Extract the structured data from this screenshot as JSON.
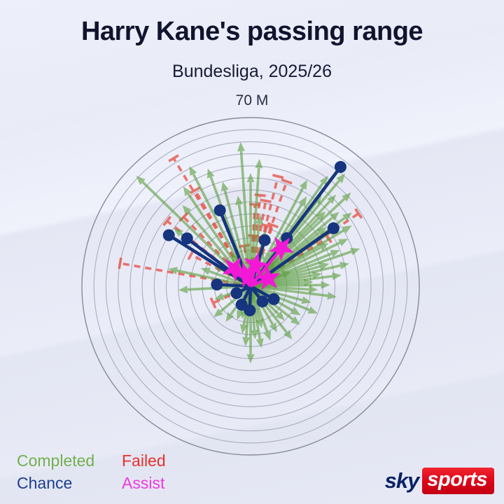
{
  "header": {
    "title": "Harry Kane's passing range",
    "subtitle": "Bundesliga, 2025/26"
  },
  "chart": {
    "max_label": "70 M"
  },
  "legend": {
    "completed": "Completed",
    "failed": "Failed",
    "chance": "Chance",
    "assist": "Assist"
  },
  "branding": {
    "sky": "sky",
    "sports": "sports"
  },
  "colors": {
    "title_text": "#10142e",
    "background": "#e8eaf6",
    "ring": "#a9adc0",
    "outer_ring": "#878b9b",
    "completed": "#5a9e3c",
    "failed": "#e8544a",
    "chance": "#16357e",
    "assist": "#f318d6"
  },
  "chart_data": {
    "type": "scatter",
    "subtype": "radial-pass-map",
    "title": "Harry Kane's passing range",
    "subtitle": "Bundesliga, 2025/26",
    "max_radius_m": 70,
    "ring_interval_m": 5,
    "ring_count": 14,
    "max_ring_label": "70 M",
    "angle_convention": "degrees, 0 = right/east, positive = counterclockwise (up); length in meters",
    "series": [
      {
        "name": "Completed",
        "style": "arrow",
        "color": "#5a9e3c",
        "opacity": 0.6,
        "passes": [
          [
            136,
            66
          ],
          [
            117,
            56
          ],
          [
            124,
            50
          ],
          [
            130,
            44
          ],
          [
            143,
            40
          ],
          [
            110,
            52
          ],
          [
            105,
            45
          ],
          [
            94,
            60
          ],
          [
            90,
            47
          ],
          [
            86,
            53
          ],
          [
            98,
            38
          ],
          [
            82,
            30
          ],
          [
            62,
            50
          ],
          [
            58,
            44
          ],
          [
            55,
            56
          ],
          [
            52,
            48
          ],
          [
            50,
            61
          ],
          [
            47,
            52
          ],
          [
            45,
            44
          ],
          [
            43,
            57
          ],
          [
            40,
            48
          ],
          [
            38,
            40
          ],
          [
            36,
            52
          ],
          [
            34,
            44
          ],
          [
            31,
            49
          ],
          [
            29,
            37
          ],
          [
            26,
            45
          ],
          [
            22,
            40
          ],
          [
            19,
            48
          ],
          [
            16,
            34
          ],
          [
            13,
            42
          ],
          [
            10,
            30
          ],
          [
            7,
            38
          ],
          [
            4,
            26
          ],
          [
            1,
            33
          ],
          [
            -3,
            28
          ],
          [
            -7,
            36
          ],
          [
            168,
            35
          ],
          [
            183,
            30
          ],
          [
            160,
            22
          ],
          [
            150,
            18
          ],
          [
            -160,
            16
          ],
          [
            -140,
            20
          ],
          [
            -125,
            18
          ],
          [
            -112,
            15
          ],
          [
            -90,
            32
          ],
          [
            -95,
            25
          ],
          [
            -85,
            22
          ],
          [
            -100,
            20
          ],
          [
            -80,
            26
          ],
          [
            -75,
            18
          ],
          [
            -70,
            24
          ],
          [
            -105,
            14
          ],
          [
            -60,
            22
          ],
          [
            -52,
            28
          ],
          [
            -45,
            20
          ],
          [
            -38,
            26
          ],
          [
            -30,
            24
          ],
          [
            -22,
            30
          ],
          [
            -15,
            26
          ],
          [
            70,
            16
          ],
          [
            75,
            24
          ],
          [
            120,
            16
          ],
          [
            20,
            18
          ],
          [
            45,
            15
          ]
        ]
      },
      {
        "name": "Failed",
        "style": "dashed-blocked",
        "color": "#e8544a",
        "opacity": 0.8,
        "passes": [
          [
            170,
            55
          ],
          [
            121,
            62
          ],
          [
            120,
            46
          ],
          [
            142,
            44
          ],
          [
            134,
            40
          ],
          [
            152,
            28
          ],
          [
            76,
            47
          ],
          [
            71,
            46
          ],
          [
            84,
            38
          ],
          [
            80,
            36
          ],
          [
            87,
            34
          ],
          [
            70,
            27
          ],
          [
            75,
            26
          ],
          [
            87,
            21
          ],
          [
            99,
            17
          ],
          [
            34,
            54
          ],
          [
            32,
            38
          ],
          [
            -156,
            17
          ]
        ]
      },
      {
        "name": "Chance",
        "style": "line-dot",
        "color": "#16357e",
        "opacity": 1,
        "passes": [
          [
            53,
            62
          ],
          [
            112,
            34
          ],
          [
            148,
            40
          ],
          [
            143,
            33
          ],
          [
            73,
            20
          ],
          [
            53,
            25
          ],
          [
            35,
            42
          ],
          [
            177,
            14
          ],
          [
            -154,
            6.5
          ],
          [
            -116,
            8.5
          ],
          [
            -92,
            10
          ],
          [
            -52,
            8
          ],
          [
            -29,
            11
          ]
        ]
      },
      {
        "name": "Assist",
        "style": "line-star",
        "color": "#f318d6",
        "opacity": 1,
        "passes": [
          [
            51,
            20.5
          ],
          [
            133,
            10
          ],
          [
            77,
            9
          ],
          [
            24,
            8
          ],
          [
            109,
            5
          ]
        ]
      }
    ]
  }
}
